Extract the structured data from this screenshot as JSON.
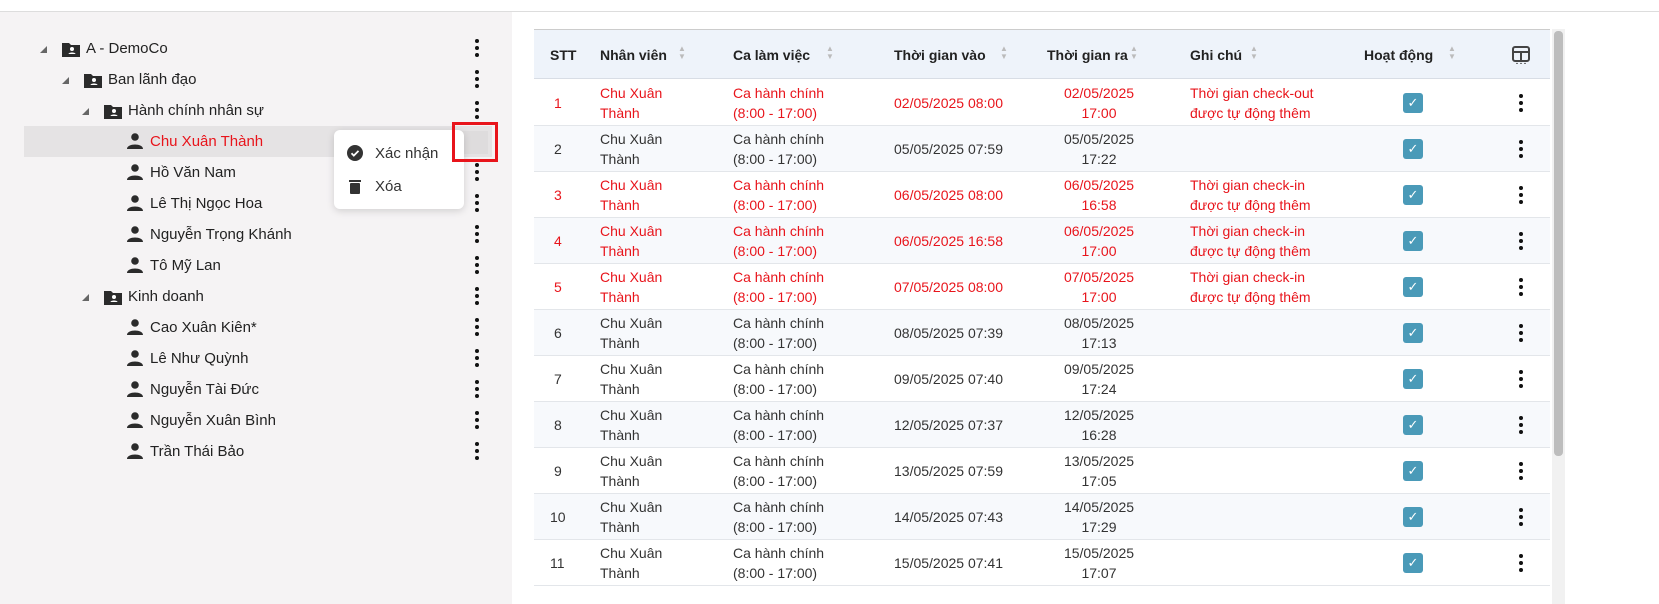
{
  "tree": [
    {
      "label": "A - DemoCo",
      "type": "folder",
      "level": 0,
      "expanded": true
    },
    {
      "label": "Ban lãnh đạo",
      "type": "folder",
      "level": 1,
      "expanded": true
    },
    {
      "label": "Hành chính nhân sự",
      "type": "folder",
      "level": 2,
      "expanded": true
    },
    {
      "label": "Chu Xuân Thành",
      "type": "person",
      "level": 3,
      "selected": true
    },
    {
      "label": "Hồ Văn Nam",
      "type": "person",
      "level": 3
    },
    {
      "label": "Lê Thị Ngọc Hoa",
      "type": "person",
      "level": 3
    },
    {
      "label": "Nguyễn Trọng Khánh",
      "type": "person",
      "level": 3
    },
    {
      "label": "Tô Mỹ Lan",
      "type": "person",
      "level": 3
    },
    {
      "label": "Kinh doanh",
      "type": "folder",
      "level": 2,
      "expanded": true
    },
    {
      "label": "Cao Xuân Kiên*",
      "type": "person",
      "level": 3
    },
    {
      "label": "Lê Như Quỳnh",
      "type": "person",
      "level": 3
    },
    {
      "label": "Nguyễn Tài Đức",
      "type": "person",
      "level": 3
    },
    {
      "label": "Nguyễn Xuân Bình",
      "type": "person",
      "level": 3
    },
    {
      "label": "Trần Thái Bảo",
      "type": "person",
      "level": 3
    }
  ],
  "context_menu": {
    "confirm": "Xác nhận",
    "delete": "Xóa"
  },
  "table": {
    "headers": {
      "stt": "STT",
      "employee": "Nhân viên",
      "shift": "Ca làm việc",
      "time_in": "Thời gian vào",
      "time_out": "Thời gian ra",
      "note": "Ghi chú",
      "active": "Hoạt động"
    },
    "rows": [
      {
        "stt": "1",
        "emp1": "Chu Xuân",
        "emp2": "Thành",
        "shift1": "Ca hành chính",
        "shift2": "(8:00 - 17:00)",
        "in": "02/05/2025 08:00",
        "out1": "02/05/2025",
        "out2": "17:00",
        "note1": "Thời gian check-out",
        "note2": "được tự động thêm",
        "active": true,
        "highlight": true
      },
      {
        "stt": "2",
        "emp1": "Chu Xuân",
        "emp2": "Thành",
        "shift1": "Ca hành chính",
        "shift2": "(8:00 - 17:00)",
        "in": "05/05/2025 07:59",
        "out1": "05/05/2025",
        "out2": "17:22",
        "note1": "",
        "note2": "",
        "active": true
      },
      {
        "stt": "3",
        "emp1": "Chu Xuân",
        "emp2": "Thành",
        "shift1": "Ca hành chính",
        "shift2": "(8:00 - 17:00)",
        "in": "06/05/2025 08:00",
        "out1": "06/05/2025",
        "out2": "16:58",
        "note1": "Thời gian check-in",
        "note2": "được tự động thêm",
        "active": true,
        "highlight": true
      },
      {
        "stt": "4",
        "emp1": "Chu Xuân",
        "emp2": "Thành",
        "shift1": "Ca hành chính",
        "shift2": "(8:00 - 17:00)",
        "in": "06/05/2025 16:58",
        "out1": "06/05/2025",
        "out2": "17:00",
        "note1": "Thời gian check-in",
        "note2": "được tự động thêm",
        "active": true,
        "highlight": true
      },
      {
        "stt": "5",
        "emp1": "Chu Xuân",
        "emp2": "Thành",
        "shift1": "Ca hành chính",
        "shift2": "(8:00 - 17:00)",
        "in": "07/05/2025 08:00",
        "out1": "07/05/2025",
        "out2": "17:00",
        "note1": "Thời gian check-in",
        "note2": "được tự động thêm",
        "active": true,
        "highlight": true
      },
      {
        "stt": "6",
        "emp1": "Chu Xuân",
        "emp2": "Thành",
        "shift1": "Ca hành chính",
        "shift2": "(8:00 - 17:00)",
        "in": "08/05/2025 07:39",
        "out1": "08/05/2025",
        "out2": "17:13",
        "note1": "",
        "note2": "",
        "active": true
      },
      {
        "stt": "7",
        "emp1": "Chu Xuân",
        "emp2": "Thành",
        "shift1": "Ca hành chính",
        "shift2": "(8:00 - 17:00)",
        "in": "09/05/2025 07:40",
        "out1": "09/05/2025",
        "out2": "17:24",
        "note1": "",
        "note2": "",
        "active": true
      },
      {
        "stt": "8",
        "emp1": "Chu Xuân",
        "emp2": "Thành",
        "shift1": "Ca hành chính",
        "shift2": "(8:00 - 17:00)",
        "in": "12/05/2025 07:37",
        "out1": "12/05/2025",
        "out2": "16:28",
        "note1": "",
        "note2": "",
        "active": true
      },
      {
        "stt": "9",
        "emp1": "Chu Xuân",
        "emp2": "Thành",
        "shift1": "Ca hành chính",
        "shift2": "(8:00 - 17:00)",
        "in": "13/05/2025 07:59",
        "out1": "13/05/2025",
        "out2": "17:05",
        "note1": "",
        "note2": "",
        "active": true
      },
      {
        "stt": "10",
        "emp1": "Chu Xuân",
        "emp2": "Thành",
        "shift1": "Ca hành chính",
        "shift2": "(8:00 - 17:00)",
        "in": "14/05/2025 07:43",
        "out1": "14/05/2025",
        "out2": "17:29",
        "note1": "",
        "note2": "",
        "active": true
      },
      {
        "stt": "11",
        "emp1": "Chu Xuân",
        "emp2": "Thành",
        "shift1": "Ca hành chính",
        "shift2": "(8:00 - 17:00)",
        "in": "15/05/2025 07:41",
        "out1": "15/05/2025",
        "out2": "17:07",
        "note1": "",
        "note2": "",
        "active": true
      }
    ]
  },
  "colors": {
    "highlight": "#e8141b",
    "checkbox": "#4a9ab8",
    "header_bg": "#eef3fa",
    "panel_bg": "#f5f3f4"
  }
}
